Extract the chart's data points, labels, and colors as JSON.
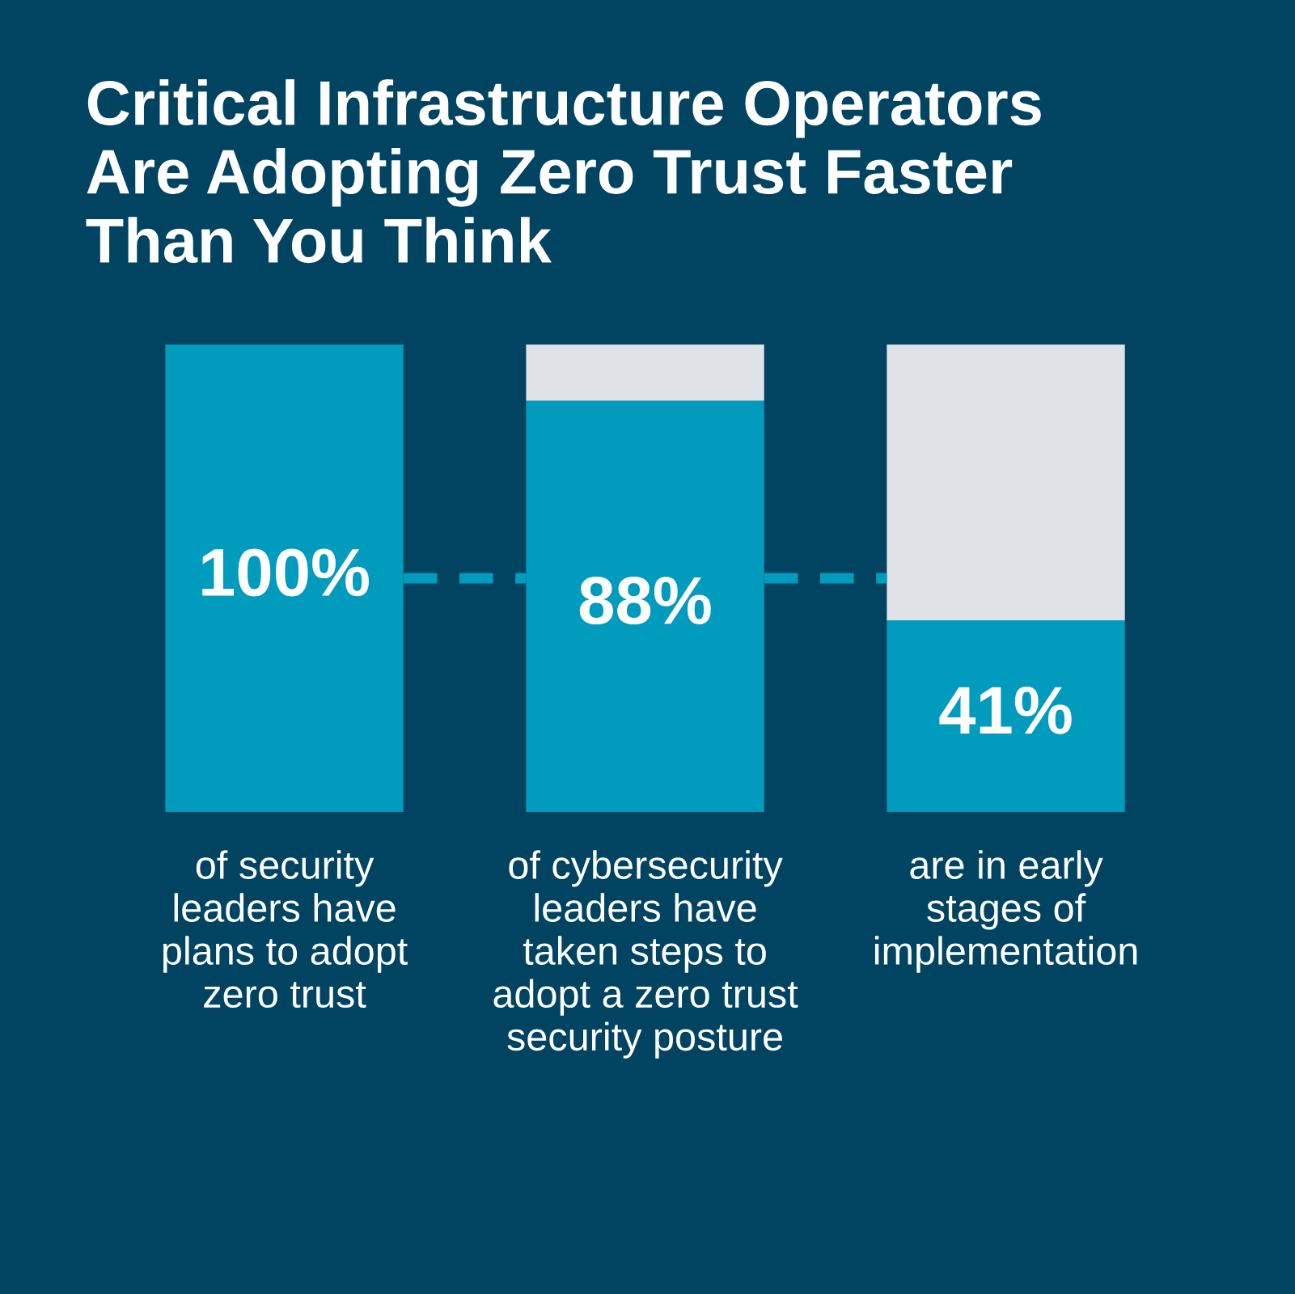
{
  "chart_data": {
    "type": "bar",
    "title": "Critical Infrastructure Operators\nAre Adopting Zero Trust Faster\nThan You Think",
    "categories": [
      "of security\nleaders have\nplans to adopt\nzero trust",
      "of cybersecurity\nleaders have\ntaken steps to\nadopt a zero trust\nsecurity posture",
      "are in early\nstages of\nimplementation"
    ],
    "stacked": true,
    "series": [
      {
        "color": "#009bbd",
        "values": [
          100,
          88,
          41
        ],
        "value_labels": [
          "100%",
          "88%",
          "41%"
        ]
      },
      {
        "color": "#dfe2e7",
        "values": [
          0,
          12,
          59
        ]
      }
    ],
    "ylim": [
      0,
      100
    ],
    "tick_labels": "x"
  }
}
